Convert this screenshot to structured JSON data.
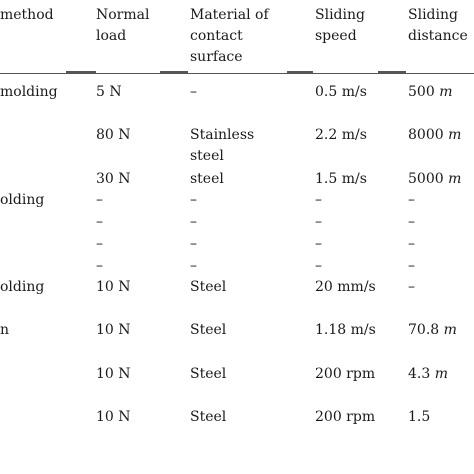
{
  "headers": [
    {
      "text": "method"
    },
    {
      "text": "Normal\nload"
    },
    {
      "text": "Material of\ncontact\nsurface"
    },
    {
      "text": "Sliding\nspeed"
    },
    {
      "text": "Sliding\ndistance"
    }
  ],
  "rows": [
    {
      "method": "molding",
      "load": "5 N",
      "material": "–",
      "speed": "0.5 m/s",
      "dist_num": "500",
      "dist_unit": "m"
    },
    {
      "method": "",
      "load": "80 N",
      "material": "Stainless\nsteel",
      "speed": "2.2 m/s",
      "dist_num": "8000",
      "dist_unit": "m"
    },
    {
      "method": "",
      "load": "30 N",
      "material": "steel",
      "speed": "1.5 m/s",
      "dist_num": "5000",
      "dist_unit": "m"
    },
    {
      "method": "olding",
      "load": "–",
      "material": "–",
      "speed": "–",
      "dist_num": "–",
      "dist_unit": ""
    },
    {
      "method": "",
      "load": "–",
      "material": "–",
      "speed": "–",
      "dist_num": "–",
      "dist_unit": ""
    },
    {
      "method": "",
      "load": "–",
      "material": "–",
      "speed": "–",
      "dist_num": "–",
      "dist_unit": ""
    },
    {
      "method": "",
      "load": "–",
      "material": "–",
      "speed": "–",
      "dist_num": "–",
      "dist_unit": ""
    },
    {
      "method": "olding",
      "load": "10 N",
      "material": "Steel",
      "speed": "20 mm/s",
      "dist_num": "–",
      "dist_unit": ""
    },
    {
      "method": "n",
      "load": "10 N",
      "material": "Steel",
      "speed": "1.18 m/s",
      "dist_num": "70.8",
      "dist_unit": "m"
    },
    {
      "method": "",
      "load": "10 N",
      "material": "Steel",
      "speed": "200 rpm",
      "dist_num": "4.3",
      "dist_unit": "m"
    },
    {
      "method": "",
      "load": "10 N",
      "material": "Steel",
      "speed": "200 rpm",
      "dist_num": "1.5",
      "dist_unit": ""
    }
  ]
}
